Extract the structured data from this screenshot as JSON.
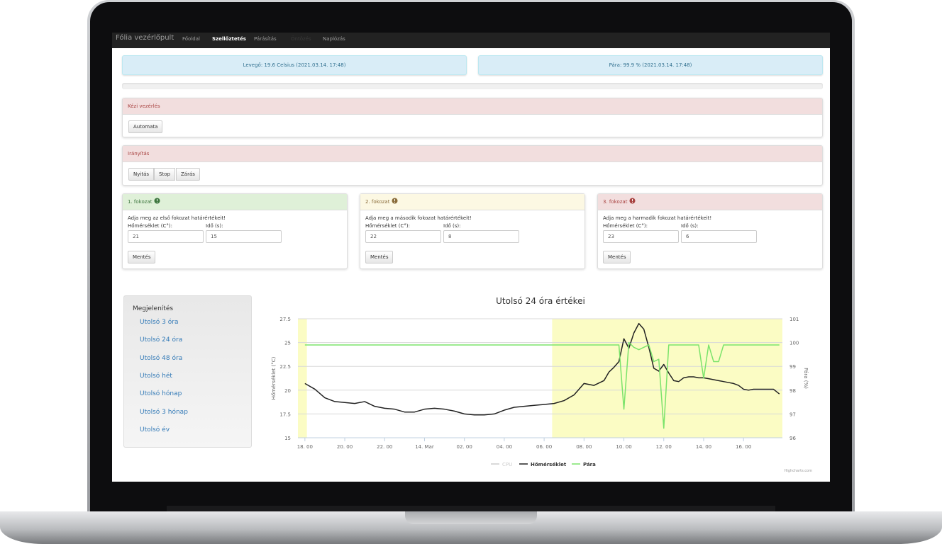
{
  "navbar": {
    "brand": "Fólia vezérlőpult",
    "links": [
      "Főoldal",
      "Szellőztetés",
      "Párásítás",
      "Öntözés",
      "Naplózás"
    ]
  },
  "status": [
    "Levegő: 19.6 Celsius (2021.03.14. 17:48)",
    "Pára: 99.9 % (2021.03.14. 17:48)"
  ],
  "manual_panel": {
    "title": "Kézi vezérlés",
    "button": "Automata"
  },
  "control_panel": {
    "title": "Irányítás",
    "buttons": [
      "Nyitás",
      "Stop",
      "Zárás"
    ]
  },
  "stages": [
    {
      "title": "1. fokozat",
      "prompt": "Adja meg az első fokozat határértékeit!",
      "temp_label": "Hőmérséklet (C°):",
      "time_label": "Idő (s):",
      "temp": 21,
      "time": 15,
      "button": "Mentés"
    },
    {
      "title": "2. fokozat",
      "prompt": "Adja meg a második fokozat határértékeit!",
      "temp_label": "Hőmérséklet (C°):",
      "time_label": "Idő (s):",
      "temp": 22,
      "time": 8,
      "button": "Mentés"
    },
    {
      "title": "3. fokozat",
      "prompt": "Adja meg a harmadik fokozat határértékeit!",
      "temp_label": "Hőmérséklet (C°):",
      "time_label": "Idő (s):",
      "temp": 23,
      "time": 6,
      "button": "Mentés"
    }
  ],
  "sidebar": {
    "title": "Megjelenítés",
    "links": [
      "Utolsó 3 óra",
      "Utolsó 24 óra",
      "Utolsó 48 óra",
      "Utolsó hét",
      "Utolsó hónap",
      "Utolsó 3 hónap",
      "Utolsó év"
    ]
  },
  "chart_data": {
    "type": "line",
    "title": "Utolsó 24 óra értékei",
    "y_label": "Hőmérséklet (°C)",
    "y2_label": "Pára (%)",
    "credit": "Highcharts.com",
    "x": [
      18,
      18.5,
      19,
      19.5,
      20,
      20.5,
      21,
      21.5,
      22,
      22.5,
      23,
      23.5,
      24,
      24.5,
      25,
      25.5,
      26,
      26.5,
      27,
      27.5,
      28,
      28.5,
      29,
      29.5,
      30,
      30.5,
      31,
      31.5,
      32,
      32.5,
      33,
      33.25,
      33.5,
      33.75,
      34,
      34.25,
      34.5,
      34.75,
      35,
      35.25,
      35.5,
      35.75,
      36,
      36.25,
      36.5,
      36.75,
      37,
      37.25,
      37.5,
      37.75,
      38,
      38.25,
      38.5,
      38.75,
      39,
      39.25,
      39.5,
      39.75,
      40,
      40.25,
      40.5,
      40.75,
      41,
      41.5,
      41.8
    ],
    "xlim": [
      17.65,
      41.95
    ],
    "xticks": [
      {
        "value": 18,
        "label": "18. 00"
      },
      {
        "value": 20,
        "label": "20. 00"
      },
      {
        "value": 22,
        "label": "22. 00"
      },
      {
        "value": 24,
        "label": "14. Mar"
      },
      {
        "value": 26,
        "label": "02. 00"
      },
      {
        "value": 28,
        "label": "04. 00"
      },
      {
        "value": 30,
        "label": "06. 00"
      },
      {
        "value": 32,
        "label": "08. 00"
      },
      {
        "value": 34,
        "label": "10. 00"
      },
      {
        "value": 36,
        "label": "12. 00"
      },
      {
        "value": 38,
        "label": "14. 00"
      },
      {
        "value": 40,
        "label": "16. 00"
      }
    ],
    "ylim": [
      15,
      27.5
    ],
    "yticks": [
      15,
      17.5,
      20,
      22.5,
      25,
      27.5
    ],
    "y2lim": [
      96,
      101
    ],
    "y2ticks": [
      96,
      97,
      98,
      99,
      100,
      101
    ],
    "grid": true,
    "legend": "bottom",
    "plot_bands": [
      {
        "from": 17.65,
        "to": 18.1
      },
      {
        "from": 30.4,
        "to": 41.95
      }
    ],
    "band_color": "#fbfcc4",
    "series": [
      {
        "name": "CPU",
        "color": "#cccccc",
        "visible": false,
        "values": [
          null,
          null,
          null,
          null,
          null,
          null,
          null,
          null,
          null,
          null,
          null,
          null,
          null,
          null,
          null,
          null,
          null,
          null,
          null,
          null,
          null,
          null,
          null,
          null,
          null,
          null,
          null,
          null,
          null,
          null,
          null,
          null,
          null,
          null,
          null,
          null,
          null,
          null,
          null,
          null,
          null,
          null,
          null,
          null,
          null,
          null,
          null,
          null,
          null,
          null,
          null,
          null,
          null,
          null,
          null,
          null,
          null,
          null,
          null,
          null,
          null,
          null,
          null,
          null,
          null
        ]
      },
      {
        "name": "Hőmérséklet",
        "color": "#222222",
        "values": [
          20.7,
          20.1,
          19.2,
          18.8,
          18.7,
          18.6,
          18.8,
          18.3,
          18.1,
          18.0,
          17.7,
          17.7,
          18.0,
          18.1,
          18.0,
          17.8,
          17.5,
          17.4,
          17.4,
          17.5,
          17.9,
          18.2,
          18.3,
          18.4,
          18.5,
          18.6,
          18.9,
          19.5,
          20.7,
          20.5,
          21.0,
          21.9,
          22.4,
          23.0,
          25.4,
          24.4,
          26.0,
          27.0,
          26.4,
          24.5,
          22.3,
          22.0,
          22.7,
          21.8,
          21.0,
          20.9,
          21.3,
          21.4,
          21.4,
          21.3,
          21.3,
          21.2,
          21.1,
          21.0,
          20.9,
          20.8,
          20.7,
          20.5,
          20.1,
          20.0,
          20.1,
          20.1,
          20.1,
          20.1,
          19.6
        ]
      },
      {
        "name": "Pára",
        "color": "#7be36b",
        "axis": "y2",
        "values": [
          99.9,
          99.9,
          99.9,
          99.9,
          99.9,
          99.9,
          99.9,
          99.9,
          99.9,
          99.9,
          99.9,
          99.9,
          99.9,
          99.9,
          99.9,
          99.9,
          99.9,
          99.9,
          99.9,
          99.9,
          99.9,
          99.9,
          99.9,
          99.9,
          99.9,
          99.9,
          99.9,
          99.9,
          99.9,
          99.9,
          99.9,
          99.9,
          99.9,
          99.9,
          97.2,
          100.0,
          99.8,
          99.7,
          99.8,
          99.9,
          99.2,
          99.3,
          96.4,
          99.9,
          99.9,
          99.9,
          99.9,
          99.9,
          99.9,
          99.9,
          98.5,
          99.9,
          99.2,
          99.2,
          99.9,
          99.9,
          99.9,
          99.9,
          99.9,
          99.9,
          99.9,
          99.9,
          99.9,
          99.9,
          99.9
        ]
      }
    ]
  }
}
